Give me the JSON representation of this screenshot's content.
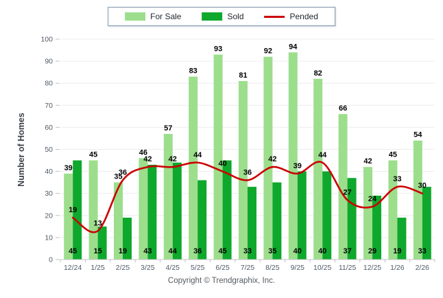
{
  "chart_data": {
    "type": "bar",
    "categories": [
      "12/24",
      "1/25",
      "2/25",
      "3/25",
      "4/25",
      "5/25",
      "6/25",
      "7/25",
      "8/25",
      "9/25",
      "10/25",
      "11/25",
      "12/25",
      "1/26",
      "2/26"
    ],
    "series": [
      {
        "name": "For Sale",
        "type": "bar",
        "color": "#9CDE8C",
        "values": [
          39,
          45,
          35,
          46,
          57,
          83,
          93,
          81,
          92,
          94,
          82,
          66,
          42,
          45,
          54
        ]
      },
      {
        "name": "Sold",
        "type": "bar",
        "color": "#0EA82D",
        "values": [
          45,
          15,
          19,
          43,
          44,
          36,
          45,
          33,
          35,
          40,
          40,
          37,
          29,
          19,
          33
        ]
      },
      {
        "name": "Pended",
        "type": "line",
        "color": "#CC0000",
        "values": [
          19,
          13,
          36,
          42,
          42,
          44,
          40,
          36,
          42,
          39,
          44,
          27,
          24,
          33,
          30
        ]
      }
    ],
    "title": "",
    "xlabel": "",
    "ylabel": "Number of Homes",
    "ylim": [
      0,
      100
    ],
    "ytick_step": 10,
    "grid": true,
    "legend_position": "top",
    "label_color": "#000000",
    "axis_text_color": "#4d5a66"
  },
  "footer": {
    "text": "Copyright © Trendgraphix, Inc."
  }
}
